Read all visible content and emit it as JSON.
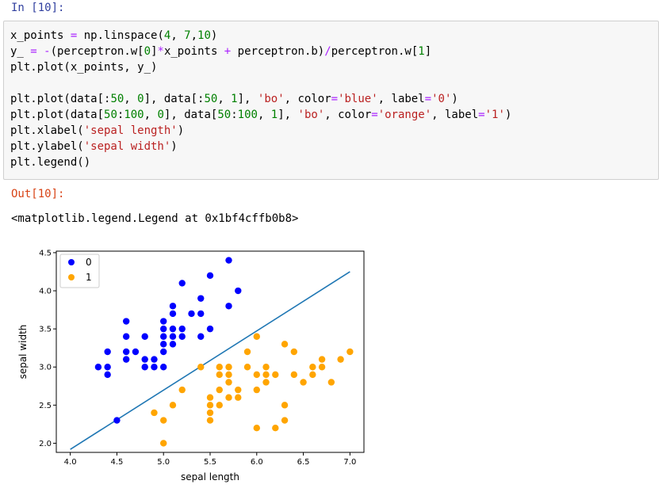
{
  "input_prompt": "In [10]:",
  "output_prompt": "Out[10]:",
  "code": {
    "l1a": "x_points ",
    "l1b": "=",
    "l1c": " np.linspace(",
    "l1d": "4",
    "l1e": ", ",
    "l1f": "7",
    "l1g": ",",
    "l1h": "10",
    "l1i": ")",
    "l2a": "y_ ",
    "l2b": "=",
    "l2c": " ",
    "l2d": "-",
    "l2e": "(perceptron.w[",
    "l2f": "0",
    "l2g": "]",
    "l2h": "*",
    "l2i": "x_points ",
    "l2j": "+",
    "l2k": " perceptron.b)",
    "l2l": "/",
    "l2m": "perceptron.w[",
    "l2n": "1",
    "l2o": "]",
    "l3": "plt.plot(x_points, y_)",
    "l4a": "plt.plot(data[:",
    "l4b": "50",
    "l4c": ", ",
    "l4d": "0",
    "l4e": "], data[:",
    "l4f": "50",
    "l4g": ", ",
    "l4h": "1",
    "l4i": "], ",
    "l4j": "'bo'",
    "l4k": ", color",
    "l4l": "=",
    "l4m": "'blue'",
    "l4n": ", label",
    "l4o": "=",
    "l4p": "'0'",
    "l4q": ")",
    "l5a": "plt.plot(data[",
    "l5b": "50",
    "l5c": ":",
    "l5d": "100",
    "l5e": ", ",
    "l5f": "0",
    "l5g": "], data[",
    "l5h": "50",
    "l5i": ":",
    "l5j": "100",
    "l5k": ", ",
    "l5l": "1",
    "l5m": "], ",
    "l5n": "'bo'",
    "l5o": ", color",
    "l5p": "=",
    "l5q": "'orange'",
    "l5r": ", label",
    "l5s": "=",
    "l5t": "'1'",
    "l5u": ")",
    "l6a": "plt.xlabel(",
    "l6b": "'sepal length'",
    "l6c": ")",
    "l7a": "plt.ylabel(",
    "l7b": "'sepal width'",
    "l7c": ")",
    "l8": "plt.legend()"
  },
  "output_text": "<matplotlib.legend.Legend at 0x1bf4cffb0b8>",
  "colors": {
    "series0": "#0000ff",
    "series1": "#ffa500",
    "line": "#1f77b4"
  },
  "chart_data": {
    "type": "scatter",
    "xlabel": "sepal length",
    "ylabel": "sepal width",
    "xlim": [
      3.85,
      7.15
    ],
    "ylim": [
      1.88,
      4.52
    ],
    "xticks": [
      4.0,
      4.5,
      5.0,
      5.5,
      6.0,
      6.5,
      7.0
    ],
    "xtick_labels": [
      "4.0",
      "4.5",
      "5.0",
      "5.5",
      "6.0",
      "6.5",
      "7.0"
    ],
    "yticks": [
      2.0,
      2.5,
      3.0,
      3.5,
      4.0,
      4.5
    ],
    "ytick_labels": [
      "2.0",
      "2.5",
      "3.0",
      "3.5",
      "4.0",
      "4.5"
    ],
    "legend_position": "top-left",
    "grid": false,
    "line": {
      "x": [
        4.0,
        7.0
      ],
      "y": [
        1.92,
        4.25
      ]
    },
    "series": [
      {
        "name": "0",
        "color": "#0000ff",
        "points": [
          [
            4.3,
            3.0
          ],
          [
            4.4,
            3.2
          ],
          [
            4.4,
            3.0
          ],
          [
            4.4,
            2.9
          ],
          [
            4.5,
            2.3
          ],
          [
            4.6,
            3.6
          ],
          [
            4.6,
            3.4
          ],
          [
            4.6,
            3.2
          ],
          [
            4.6,
            3.1
          ],
          [
            4.7,
            3.2
          ],
          [
            4.8,
            3.4
          ],
          [
            4.8,
            3.1
          ],
          [
            4.8,
            3.0
          ],
          [
            4.9,
            3.1
          ],
          [
            4.9,
            3.0
          ],
          [
            5.0,
            3.6
          ],
          [
            5.0,
            3.5
          ],
          [
            5.0,
            3.4
          ],
          [
            5.0,
            3.3
          ],
          [
            5.0,
            3.2
          ],
          [
            5.0,
            3.0
          ],
          [
            5.1,
            3.8
          ],
          [
            5.1,
            3.7
          ],
          [
            5.1,
            3.5
          ],
          [
            5.1,
            3.4
          ],
          [
            5.1,
            3.3
          ],
          [
            5.2,
            4.1
          ],
          [
            5.2,
            3.5
          ],
          [
            5.2,
            3.4
          ],
          [
            5.3,
            3.7
          ],
          [
            5.4,
            3.9
          ],
          [
            5.4,
            3.7
          ],
          [
            5.4,
            3.4
          ],
          [
            5.5,
            4.2
          ],
          [
            5.5,
            3.5
          ],
          [
            5.7,
            4.4
          ],
          [
            5.7,
            3.8
          ],
          [
            5.8,
            4.0
          ]
        ]
      },
      {
        "name": "1",
        "color": "#ffa500",
        "points": [
          [
            4.9,
            2.4
          ],
          [
            5.0,
            2.3
          ],
          [
            5.0,
            2.0
          ],
          [
            5.1,
            2.5
          ],
          [
            5.2,
            2.7
          ],
          [
            5.4,
            3.0
          ],
          [
            5.5,
            2.6
          ],
          [
            5.5,
            2.5
          ],
          [
            5.5,
            2.4
          ],
          [
            5.5,
            2.3
          ],
          [
            5.6,
            3.0
          ],
          [
            5.6,
            2.9
          ],
          [
            5.6,
            2.7
          ],
          [
            5.6,
            2.5
          ],
          [
            5.7,
            3.0
          ],
          [
            5.7,
            2.9
          ],
          [
            5.7,
            2.8
          ],
          [
            5.7,
            2.6
          ],
          [
            5.8,
            2.7
          ],
          [
            5.8,
            2.6
          ],
          [
            5.9,
            3.2
          ],
          [
            5.9,
            3.0
          ],
          [
            6.0,
            3.4
          ],
          [
            6.0,
            2.9
          ],
          [
            6.0,
            2.7
          ],
          [
            6.0,
            2.2
          ],
          [
            6.1,
            3.0
          ],
          [
            6.1,
            2.9
          ],
          [
            6.1,
            2.8
          ],
          [
            6.2,
            2.9
          ],
          [
            6.2,
            2.2
          ],
          [
            6.3,
            3.3
          ],
          [
            6.3,
            2.5
          ],
          [
            6.3,
            2.3
          ],
          [
            6.4,
            3.2
          ],
          [
            6.4,
            2.9
          ],
          [
            6.5,
            2.8
          ],
          [
            6.6,
            3.0
          ],
          [
            6.6,
            2.9
          ],
          [
            6.7,
            3.1
          ],
          [
            6.7,
            3.0
          ],
          [
            6.8,
            2.8
          ],
          [
            6.9,
            3.1
          ],
          [
            7.0,
            3.2
          ]
        ]
      }
    ]
  }
}
